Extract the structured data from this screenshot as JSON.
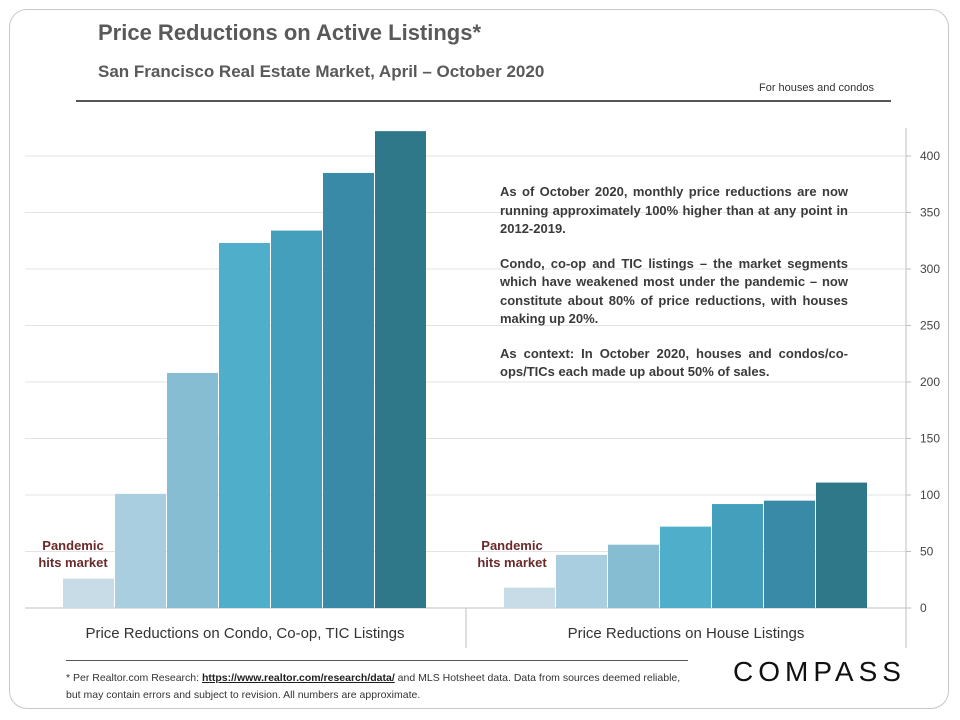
{
  "header": {
    "title": "Price Reductions on Active Listings*",
    "subtitle": "San Francisco Real Estate Market, April – October 2020",
    "note": "For houses and condos"
  },
  "annotation": {
    "p1": "As of October 2020, monthly price reductions are now running approximately 100% higher than at any point in 2012-2019.",
    "p2": "Condo, co-op and TIC listings – the market segments which have weakened most under the pandemic – now constitute about 80% of price reductions, with houses making up 20%.",
    "p3": "As context: In October 2020, houses and condos/co-ops/TICs each made up about 50% of sales."
  },
  "footnote": {
    "prefix": "* Per Realtor.com Research:",
    "link": "https://www.realtor.com/research/data/",
    "suffix": "and MLS Hotsheet data. Data from sources deemed reliable, but may contain errors and subject to revision. All numbers are approximate."
  },
  "logo": "COMPASS",
  "chart_data": {
    "type": "bar",
    "ylim": [
      0,
      420
    ],
    "yticks": [
      0,
      50,
      100,
      150,
      200,
      250,
      300,
      350,
      400
    ],
    "grid": true,
    "colors": [
      "#c7dce7",
      "#a9cedf",
      "#86bdd2",
      "#4faec9",
      "#439fbc",
      "#388aa6",
      "#2f788a"
    ],
    "groups": [
      {
        "label": "Price Reductions on Condo, Co-op, TIC Listings",
        "values": [
          26,
          101,
          208,
          323,
          334,
          385,
          422
        ],
        "annotation_line1": "Pandemic",
        "annotation_line2": "hits market"
      },
      {
        "label": "Price Reductions on House Listings",
        "values": [
          18,
          47,
          56,
          72,
          92,
          95,
          111
        ],
        "annotation_line1": "Pandemic",
        "annotation_line2": "hits market"
      }
    ]
  }
}
